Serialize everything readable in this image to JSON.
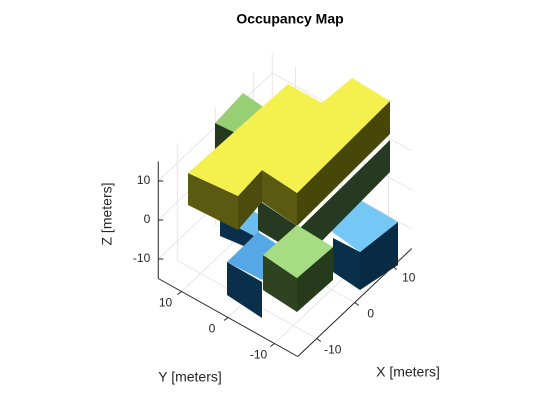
{
  "chart_data": {
    "type": "occupancy3d",
    "title": "Occupancy Map",
    "xlabel": "X [meters]",
    "ylabel": "Y [meters]",
    "zlabel": "Z [meters]",
    "xlim": [
      -15,
      15
    ],
    "ylim": [
      -15,
      15
    ],
    "zlim": [
      -15,
      15
    ],
    "xticks": [
      -10,
      0,
      10
    ],
    "yticks": [
      -10,
      0,
      10
    ],
    "zticks": [
      -10,
      0,
      10
    ],
    "grid": true
  }
}
